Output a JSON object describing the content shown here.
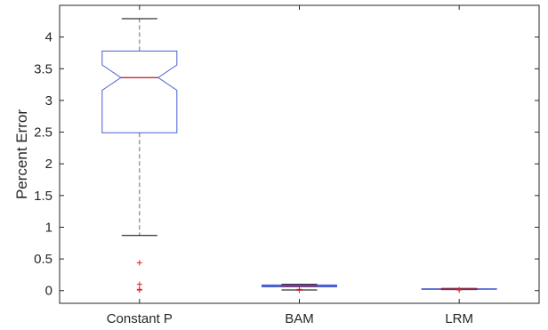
{
  "chart_data": {
    "type": "boxplot",
    "title": "",
    "xlabel": "",
    "ylabel": "Percent Error",
    "ylim": [
      -0.2,
      4.5
    ],
    "yticks": [
      0,
      0.5,
      1,
      1.5,
      2,
      2.5,
      3,
      3.5,
      4
    ],
    "ytick_labels": [
      "0",
      "0.5",
      "1",
      "1.5",
      "2",
      "2.5",
      "3",
      "3.5",
      "4"
    ],
    "grid": false,
    "notched": true,
    "categories": [
      "Constant P",
      "BAM",
      "LRM"
    ],
    "boxes": [
      {
        "category": "Constant P",
        "whisker_low": 0.87,
        "q1": 2.49,
        "median": 3.36,
        "q3": 3.78,
        "whisker_high": 4.29,
        "notch_low": 3.16,
        "notch_high": 3.56,
        "outliers": [
          0.44,
          0.1,
          0.02,
          0.01
        ]
      },
      {
        "category": "BAM",
        "whisker_low": 0.01,
        "q1": 0.06,
        "median": 0.075,
        "q3": 0.09,
        "whisker_high": 0.1,
        "notch_low": 0.068,
        "notch_high": 0.082,
        "outliers": [
          0.005,
          0.02
        ]
      },
      {
        "category": "LRM",
        "whisker_low": 0.015,
        "q1": 0.02,
        "median": 0.025,
        "q3": 0.03,
        "whisker_high": 0.035,
        "notch_low": 0.023,
        "notch_high": 0.027,
        "outliers": [
          0.01,
          0.015
        ]
      }
    ],
    "colors": {
      "box": "#4a5fd0",
      "median": "#c1121f",
      "whisker": "#6b6b6b",
      "whisker_cap": "#000000",
      "outlier": "#e02020",
      "axis": "#262626"
    }
  }
}
